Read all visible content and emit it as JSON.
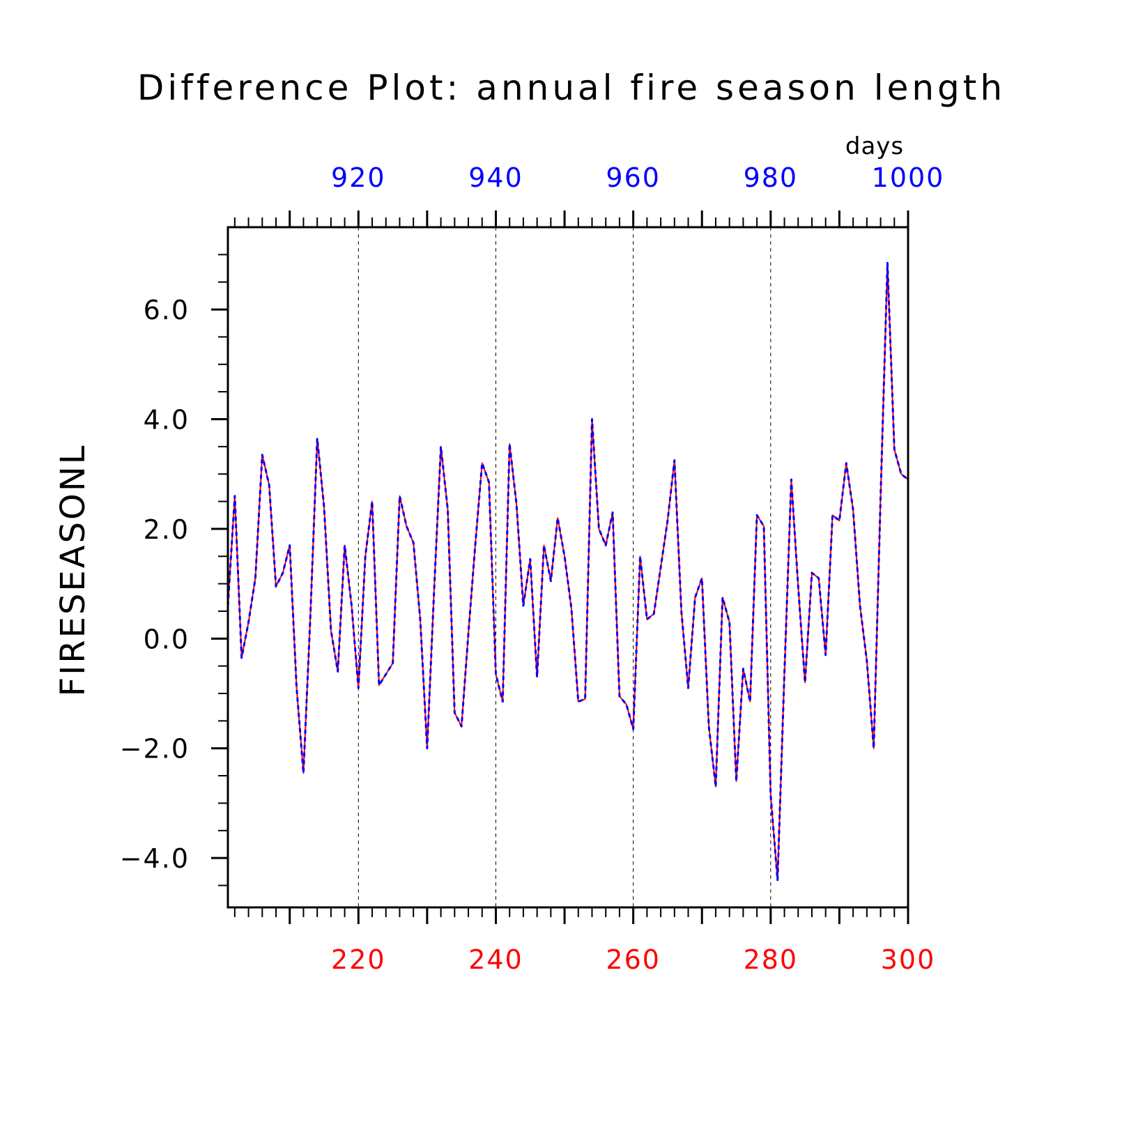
{
  "chart_data": {
    "type": "line",
    "title": "Difference Plot: annual fire season length",
    "ylabel": "FIRESEASONL",
    "units": "days",
    "x_bottom": {
      "ticks": [
        220,
        240,
        260,
        280,
        300
      ],
      "range": [
        201,
        300
      ],
      "color": "#ff0000"
    },
    "x_top": {
      "ticks": [
        920,
        940,
        960,
        980,
        1000
      ],
      "range": [
        901,
        1000
      ],
      "color": "#0000ff"
    },
    "y_ticks": [
      {
        "value": -4,
        "label": "−4.0"
      },
      {
        "value": -2,
        "label": "−2.0"
      },
      {
        "value": 0,
        "label": "0.0"
      },
      {
        "value": 2,
        "label": "2.0"
      },
      {
        "value": 4,
        "label": "4.0"
      },
      {
        "value": 6,
        "label": "6.0"
      }
    ],
    "ylim": [
      -4.9,
      7.5
    ],
    "grid": "dashed vertical lines at major x ticks",
    "series": [
      {
        "color": "#ff0000",
        "style": "solid",
        "x": [
          201,
          202,
          203,
          204,
          205,
          206,
          207,
          208,
          209,
          210,
          211,
          212,
          213,
          214,
          215,
          216,
          217,
          218,
          219,
          220,
          221,
          222,
          223,
          224,
          225,
          226,
          227,
          228,
          229,
          230,
          231,
          232,
          233,
          234,
          235,
          236,
          237,
          238,
          239,
          240,
          241,
          242,
          243,
          244,
          245,
          246,
          247,
          248,
          249,
          250,
          251,
          252,
          253,
          254,
          255,
          256,
          257,
          258,
          259,
          260,
          261,
          262,
          263,
          264,
          265,
          266,
          267,
          268,
          269,
          270,
          271,
          272,
          273,
          274,
          275,
          276,
          277,
          278,
          279,
          280,
          281,
          282,
          283,
          284,
          285,
          286,
          287,
          288,
          289,
          290,
          291,
          292,
          293,
          294,
          295,
          296,
          297,
          298,
          299,
          300
        ],
        "values": [
          0.6,
          2.6,
          -0.35,
          0.3,
          1.1,
          3.35,
          2.8,
          0.95,
          1.2,
          1.7,
          -0.9,
          -2.45,
          0.4,
          3.65,
          2.4,
          0.15,
          -0.6,
          1.7,
          0.6,
          -0.9,
          1.5,
          2.5,
          -0.85,
          -0.65,
          -0.45,
          2.6,
          2.05,
          1.75,
          0.35,
          -2.0,
          0.85,
          3.5,
          2.35,
          -1.35,
          -1.6,
          0.1,
          1.7,
          3.2,
          2.85,
          -0.65,
          -1.15,
          3.55,
          2.45,
          0.6,
          1.45,
          -0.7,
          1.7,
          1.05,
          2.2,
          1.5,
          0.55,
          -1.15,
          -1.1,
          4.0,
          2.0,
          1.7,
          2.3,
          -1.05,
          -1.2,
          -1.65,
          1.5,
          0.35,
          0.45,
          1.3,
          2.15,
          3.25,
          0.5,
          -0.9,
          0.75,
          1.1,
          -1.6,
          -2.7,
          0.75,
          0.3,
          -2.6,
          -0.55,
          -1.15,
          2.25,
          2.05,
          -2.85,
          -4.4,
          -0.65,
          2.9,
          0.95,
          -0.8,
          1.2,
          1.1,
          -0.3,
          2.25,
          2.15,
          3.2,
          2.35,
          0.6,
          -0.4,
          -2.0,
          2.6,
          6.85,
          3.45,
          3.0,
          2.9
        ]
      },
      {
        "color": "#0000ff",
        "style": "dashed",
        "x": [
          201,
          202,
          203,
          204,
          205,
          206,
          207,
          208,
          209,
          210,
          211,
          212,
          213,
          214,
          215,
          216,
          217,
          218,
          219,
          220,
          221,
          222,
          223,
          224,
          225,
          226,
          227,
          228,
          229,
          230,
          231,
          232,
          233,
          234,
          235,
          236,
          237,
          238,
          239,
          240,
          241,
          242,
          243,
          244,
          245,
          246,
          247,
          248,
          249,
          250,
          251,
          252,
          253,
          254,
          255,
          256,
          257,
          258,
          259,
          260,
          261,
          262,
          263,
          264,
          265,
          266,
          267,
          268,
          269,
          270,
          271,
          272,
          273,
          274,
          275,
          276,
          277,
          278,
          279,
          280,
          281,
          282,
          283,
          284,
          285,
          286,
          287,
          288,
          289,
          290,
          291,
          292,
          293,
          294,
          295,
          296,
          297,
          298,
          299,
          300
        ],
        "values": [
          0.6,
          2.6,
          -0.35,
          0.3,
          1.1,
          3.35,
          2.8,
          0.95,
          1.2,
          1.7,
          -0.9,
          -2.45,
          0.4,
          3.65,
          2.4,
          0.15,
          -0.6,
          1.7,
          0.6,
          -0.9,
          1.5,
          2.5,
          -0.85,
          -0.65,
          -0.45,
          2.6,
          2.05,
          1.75,
          0.35,
          -2.0,
          0.85,
          3.5,
          2.35,
          -1.35,
          -1.6,
          0.1,
          1.7,
          3.2,
          2.85,
          -0.65,
          -1.15,
          3.55,
          2.45,
          0.6,
          1.45,
          -0.7,
          1.7,
          1.05,
          2.2,
          1.5,
          0.55,
          -1.15,
          -1.1,
          4.0,
          2.0,
          1.7,
          2.3,
          -1.05,
          -1.2,
          -1.65,
          1.5,
          0.35,
          0.45,
          1.3,
          2.15,
          3.25,
          0.5,
          -0.9,
          0.75,
          1.1,
          -1.6,
          -2.7,
          0.75,
          0.3,
          -2.6,
          -0.55,
          -1.15,
          2.25,
          2.05,
          -2.85,
          -4.4,
          -0.65,
          2.9,
          0.95,
          -0.8,
          1.2,
          1.1,
          -0.3,
          2.25,
          2.15,
          3.2,
          2.35,
          0.6,
          -0.4,
          -2.0,
          2.6,
          6.85,
          3.45,
          3.0,
          2.9
        ]
      }
    ]
  }
}
